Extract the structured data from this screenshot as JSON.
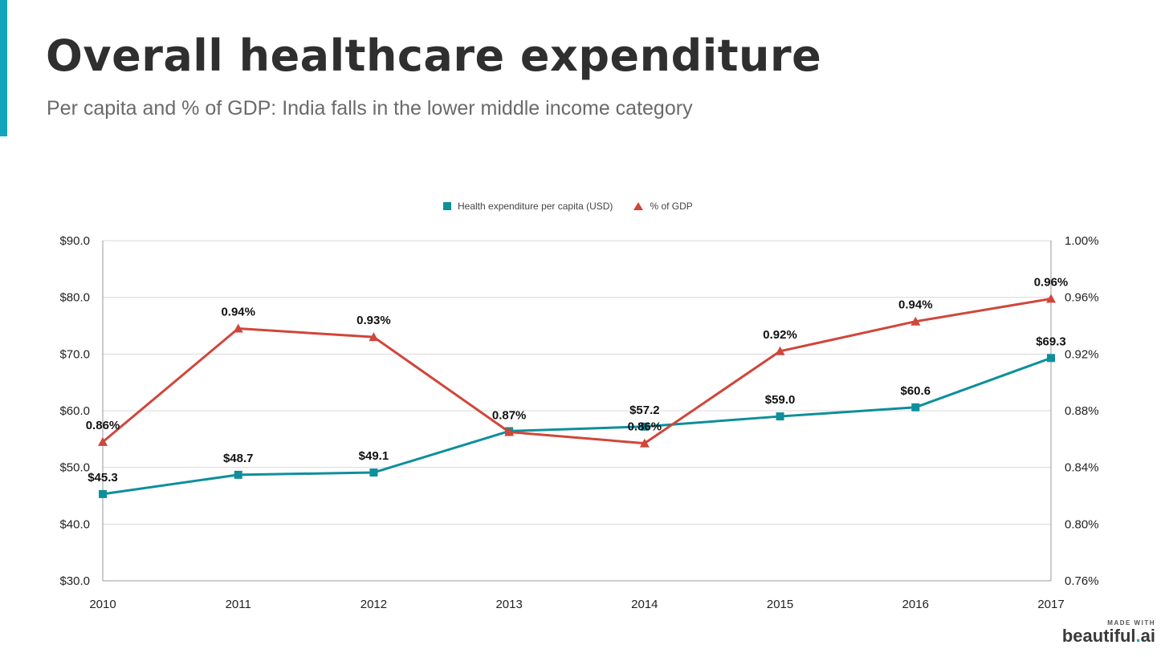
{
  "header": {
    "title": "Overall healthcare expenditure",
    "subtitle": "Per capita and % of GDP: India falls in the lower middle income category",
    "accent_color": "#12a3bd"
  },
  "brand": {
    "made_with": "MADE WITH",
    "name_main": "beautiful",
    "name_dot": ".",
    "name_suffix": "ai"
  },
  "chart_data": {
    "type": "line",
    "x": [
      "2010",
      "2011",
      "2012",
      "2013",
      "2014",
      "2015",
      "2016",
      "2017"
    ],
    "series": [
      {
        "name": "Health expenditure per capita (USD)",
        "axis": "left",
        "marker": "square",
        "color": "#0e8f9b",
        "values": [
          45.3,
          48.7,
          49.1,
          56.4,
          57.2,
          59.0,
          60.6,
          69.3
        ],
        "labels": [
          "$45.3",
          "$48.7",
          "$49.1",
          "",
          "$57.2",
          "$59.0",
          "$60.6",
          "$69.3"
        ]
      },
      {
        "name": "% of GDP",
        "axis": "right",
        "marker": "triangle",
        "color": "#d0463a",
        "values": [
          0.858,
          0.938,
          0.932,
          0.865,
          0.857,
          0.922,
          0.943,
          0.959
        ],
        "labels": [
          "0.86%",
          "0.94%",
          "0.93%",
          "0.87%",
          "0.86%",
          "0.92%",
          "0.94%",
          "0.96%"
        ]
      }
    ],
    "y_left": {
      "lim": [
        30,
        90
      ],
      "ticks": [
        "$90.0",
        "$80.0",
        "$70.0",
        "$60.0",
        "$50.0",
        "$40.0",
        "$30.0"
      ]
    },
    "y_right": {
      "lim": [
        0.76,
        1.0
      ],
      "ticks": [
        "1.00%",
        "0.96%",
        "0.92%",
        "0.88%",
        "0.84%",
        "0.80%",
        "0.76%"
      ]
    },
    "grid": true,
    "legend_position": "top-center"
  }
}
